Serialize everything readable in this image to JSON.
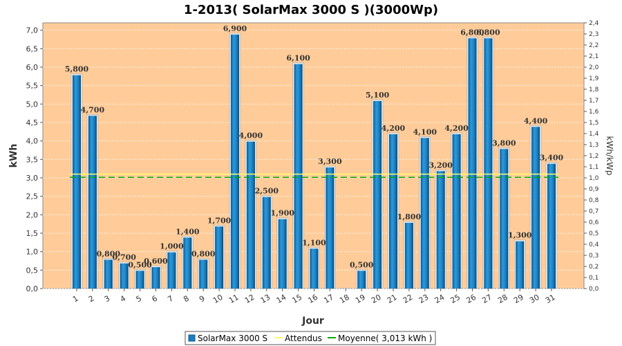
{
  "chart_data": {
    "type": "bar",
    "title": "1-2013( SolarMax 3000 S )(3000Wp)",
    "xlabel": "Jour",
    "ylabel": "kWh",
    "ylabel_right": "kWh/kWp",
    "categories": [
      "1",
      "2",
      "3",
      "4",
      "5",
      "6",
      "7",
      "8",
      "9",
      "10",
      "11",
      "12",
      "13",
      "14",
      "15",
      "16",
      "17",
      "18",
      "19",
      "20",
      "21",
      "22",
      "23",
      "24",
      "25",
      "26",
      "27",
      "28",
      "29",
      "30",
      "31"
    ],
    "series": [
      {
        "name": "SolarMax 3000 S",
        "values": [
          5.8,
          4.7,
          0.8,
          0.7,
          0.5,
          0.6,
          1.0,
          1.4,
          0.8,
          1.7,
          6.9,
          4.0,
          2.5,
          1.9,
          6.1,
          1.1,
          3.3,
          0.0,
          0.5,
          5.1,
          4.2,
          1.8,
          4.1,
          3.2,
          4.2,
          6.8,
          6.8,
          3.8,
          1.3,
          4.4,
          3.4
        ],
        "data_labels": [
          "5,800",
          "4,700",
          "0,800",
          "0,700",
          "0,500",
          "0,600",
          "1,000",
          "1,400",
          "0,800",
          "1,700",
          "6,900",
          "4,000",
          "2,500",
          "1,900",
          "6,100",
          "1,100",
          "3,300",
          "",
          "0,500",
          "5,100",
          "4,200",
          "1,800",
          "4,100",
          "3,200",
          "4,200",
          "6,800",
          "6,800",
          "3,800",
          "1,300",
          "4,400",
          "3,400"
        ]
      }
    ],
    "lines": [
      {
        "name": "Attendus",
        "value": 3.1,
        "color": "#ffff66"
      },
      {
        "name": "Moyenne( 3,013 kWh )",
        "value": 3.013,
        "color": "#00aa00"
      }
    ],
    "ylim": [
      0,
      7.2
    ],
    "yticks": [
      "0,0",
      "0,5",
      "1,0",
      "1,5",
      "2,0",
      "2,5",
      "3,0",
      "3,5",
      "4,0",
      "4,5",
      "5,0",
      "5,5",
      "6,0",
      "6,5",
      "7,0"
    ],
    "ytick_values": [
      0,
      0.5,
      1,
      1.5,
      2,
      2.5,
      3,
      3.5,
      4,
      4.5,
      5,
      5.5,
      6,
      6.5,
      7
    ],
    "y2lim": [
      0,
      2.4
    ],
    "y2ticks": [
      "0,0",
      "0,1",
      "0,2",
      "0,3",
      "0,4",
      "0,5",
      "0,6",
      "0,7",
      "0,8",
      "0,9",
      "1,0",
      "1,1",
      "1,2",
      "1,3",
      "1,4",
      "1,5",
      "1,6",
      "1,7",
      "1,8",
      "1,9",
      "2,0",
      "2,1",
      "2,2",
      "2,3",
      "2,4"
    ],
    "grid": true,
    "legend": [
      "SolarMax 3000 S",
      "Attendus",
      "Moyenne( 3,013 kWh )"
    ],
    "legend_position": "bottom",
    "colors": {
      "background": "#ffcc99",
      "bar": "#1a7fc0",
      "bar_dark": "#0d5a8c",
      "average": "#00aa00",
      "expected": "#ffff66"
    }
  }
}
